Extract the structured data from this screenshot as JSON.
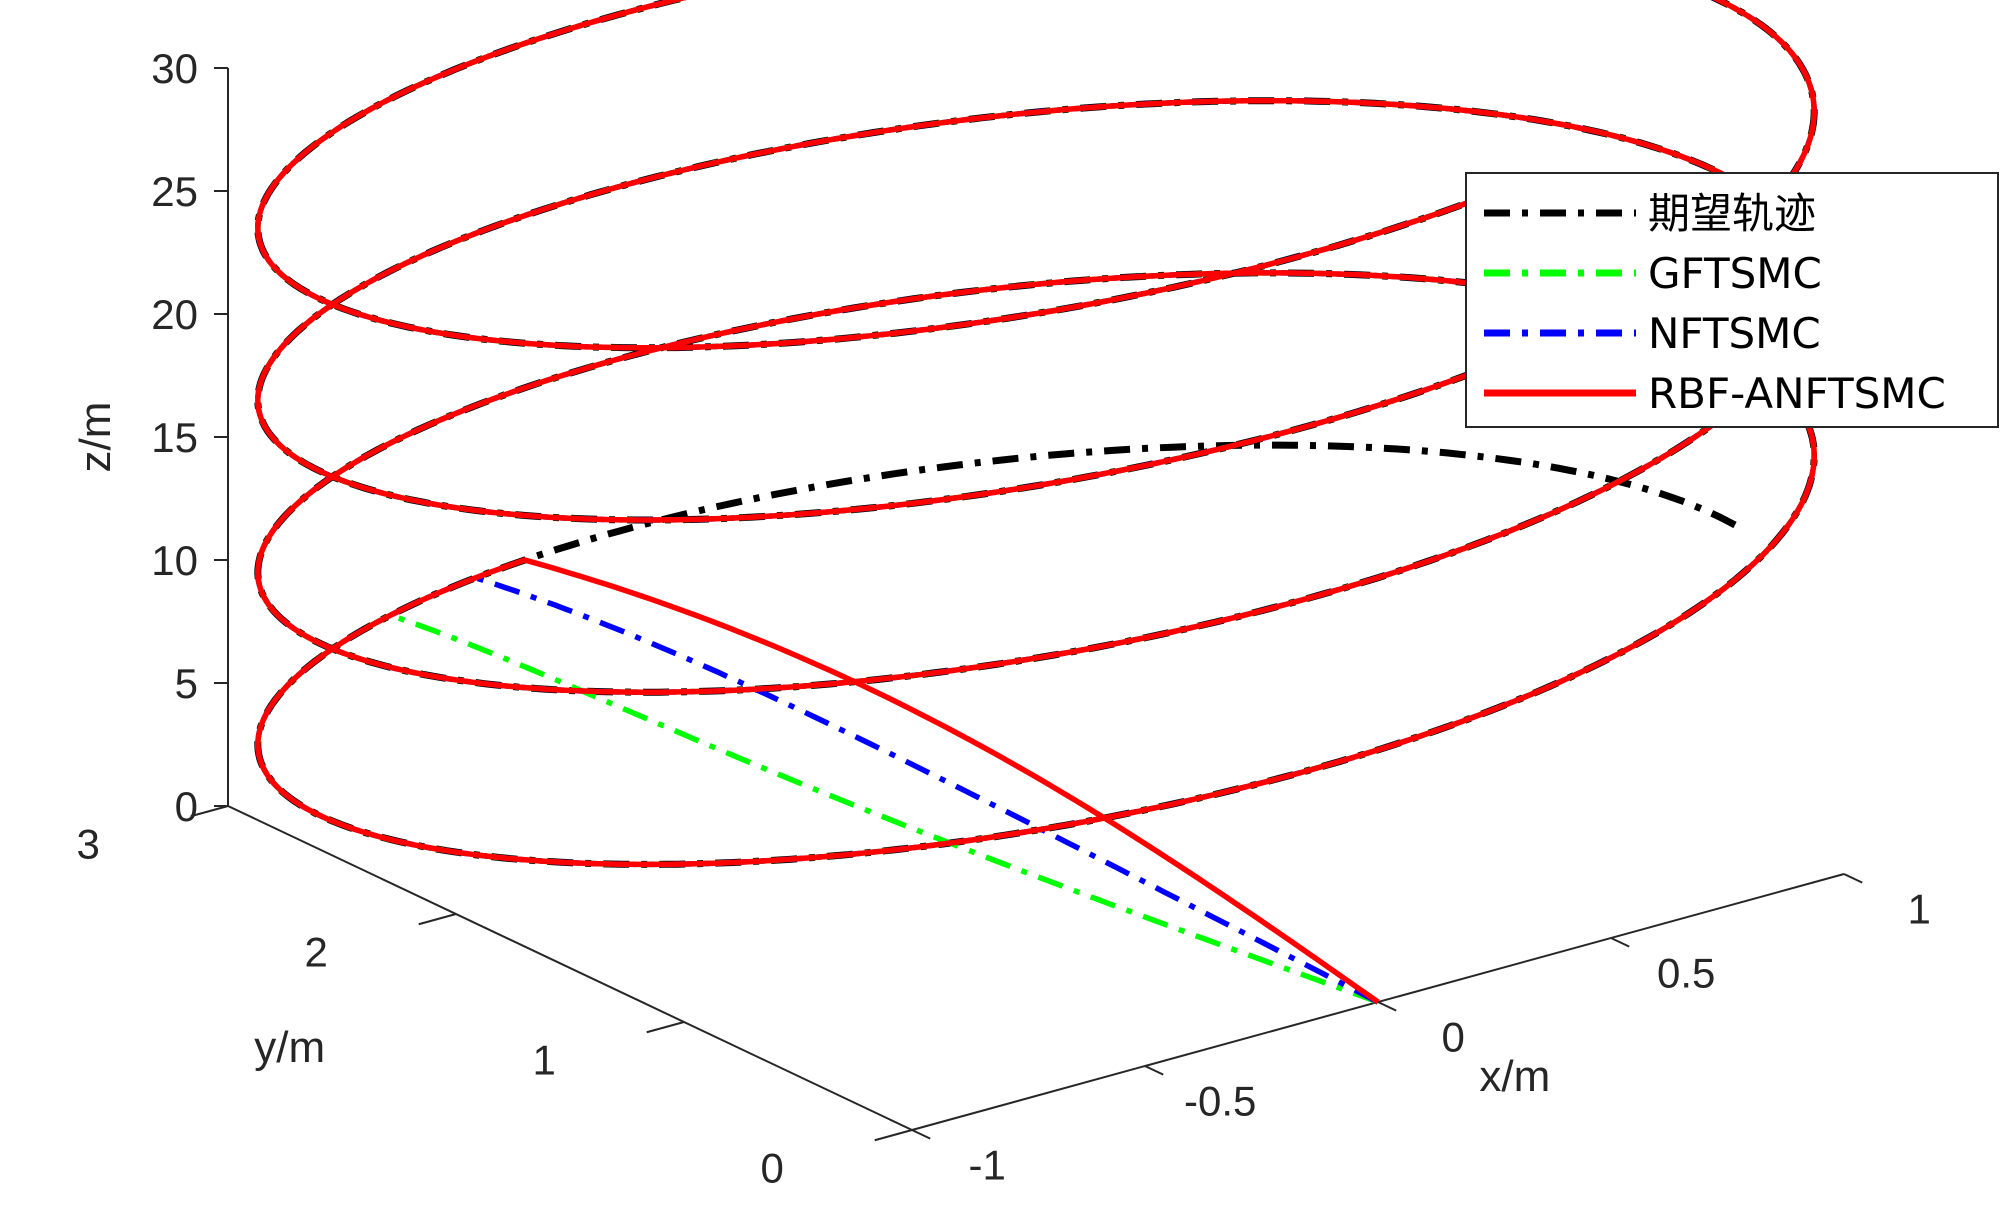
{
  "chart_data": {
    "type": "line",
    "projection": "3d",
    "title": "",
    "xlabel": "x/m",
    "ylabel": "y/m",
    "zlabel": "z/m",
    "xlim": [
      -1,
      1
    ],
    "ylim": [
      0,
      3
    ],
    "zlim": [
      0,
      30
    ],
    "xticks": [
      {
        "value": -1,
        "label": "-1"
      },
      {
        "value": -0.5,
        "label": "-0.5"
      },
      {
        "value": 0,
        "label": "0"
      },
      {
        "value": 0.5,
        "label": "0.5"
      },
      {
        "value": 1,
        "label": "1"
      }
    ],
    "yticks": [
      {
        "value": 0,
        "label": "0"
      },
      {
        "value": 1,
        "label": "1"
      },
      {
        "value": 2,
        "label": "2"
      },
      {
        "value": 3,
        "label": "3"
      }
    ],
    "zticks": [
      {
        "value": 0,
        "label": "0"
      },
      {
        "value": 5,
        "label": "5"
      },
      {
        "value": 10,
        "label": "10"
      },
      {
        "value": 15,
        "label": "15"
      },
      {
        "value": 20,
        "label": "20"
      },
      {
        "value": 25,
        "label": "25"
      },
      {
        "value": 30,
        "label": "30"
      }
    ],
    "grid": false,
    "legend_position": "top-right",
    "reference_helix": {
      "center_x": 0,
      "center_y": 1.5,
      "radius": 1.5,
      "z_rise_per_turn": 7,
      "z_start": 5,
      "z_end": 31.5
    },
    "series": [
      {
        "name": "期望轨迹",
        "color": "#000000",
        "dash": "dashdot",
        "start_point": [
          0,
          0,
          0
        ],
        "approach": null
      },
      {
        "name": "GFTSMC",
        "color": "#00ff00",
        "dash": "dashdot",
        "start_point": [
          0,
          0,
          0
        ],
        "approach": {
          "bulge_x": -0.15,
          "bulge_y": 0.1,
          "join_z": 11,
          "join_angle_deg": 120
        }
      },
      {
        "name": "NFTSMC",
        "color": "#0000ff",
        "dash": "dashdot",
        "start_point": [
          0,
          0,
          0
        ],
        "approach": {
          "bulge_x": -0.05,
          "bulge_y": 0.05,
          "join_z": 11,
          "join_angle_deg": 110
        }
      },
      {
        "name": "RBF-ANFTSMC",
        "color": "#ff0000",
        "dash": "solid",
        "start_point": [
          0,
          0,
          0
        ],
        "approach": {
          "bulge_x": 0.04,
          "bulge_y": 0.0,
          "join_z": 11,
          "join_angle_deg": 105
        }
      }
    ]
  }
}
